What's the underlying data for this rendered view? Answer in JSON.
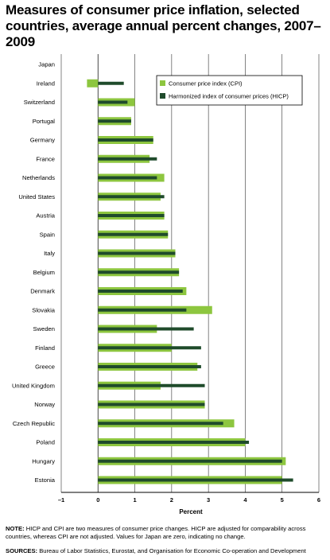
{
  "title": "Measures of consumer price inflation, selected countries, average annual percent changes, 2007–2009",
  "note": {
    "label": "NOTE:",
    "text": "HICP and CPI are two measures of consumer price changes. HICP are adjusted for comparability across countries, whereas CPI are not adjusted. Values for Japan are zero, indicating no change."
  },
  "sources": {
    "label": "SOURCES:",
    "text": "Bureau of Labor Statistics, Eurostat, and Organisation for Economic Co-operation and Development"
  },
  "colors": {
    "cpi": "#8dc63f",
    "hicp": "#1f4b2b",
    "grid": "#333333"
  },
  "chart_data": {
    "type": "bar",
    "orientation": "horizontal",
    "xlabel": "Percent",
    "ylabel": "",
    "xlim": [
      -1,
      6
    ],
    "xticks": [
      "–1",
      "0",
      "1",
      "2",
      "3",
      "4",
      "5",
      "6"
    ],
    "grid": true,
    "legend_position": "top-right",
    "categories": [
      "Japan",
      "Ireland",
      "Switzerland",
      "Portugal",
      "Germany",
      "France",
      "Netherlands",
      "United States",
      "Austria",
      "Spain",
      "Italy",
      "Belgium",
      "Denmark",
      "Slovakia",
      "Sweden",
      "Finland",
      "Greece",
      "United Kingdom",
      "Norway",
      "Czech Republic",
      "Poland",
      "Hungary",
      "Estonia"
    ],
    "series": [
      {
        "name": "Consumer price index (CPI)",
        "values": [
          0,
          -0.3,
          1.0,
          0.9,
          1.5,
          1.4,
          1.8,
          1.7,
          1.8,
          1.9,
          2.1,
          2.2,
          2.4,
          3.1,
          1.6,
          2.0,
          2.7,
          1.7,
          2.9,
          3.7,
          4.0,
          5.1,
          5.0
        ]
      },
      {
        "name": "Harmonized index of consumer prices (HICP)",
        "values": [
          0,
          0.7,
          0.8,
          0.9,
          1.5,
          1.6,
          1.6,
          1.8,
          1.8,
          1.9,
          2.1,
          2.2,
          2.3,
          2.4,
          2.6,
          2.8,
          2.8,
          2.9,
          2.9,
          3.4,
          4.1,
          5.0,
          5.3
        ]
      }
    ]
  }
}
